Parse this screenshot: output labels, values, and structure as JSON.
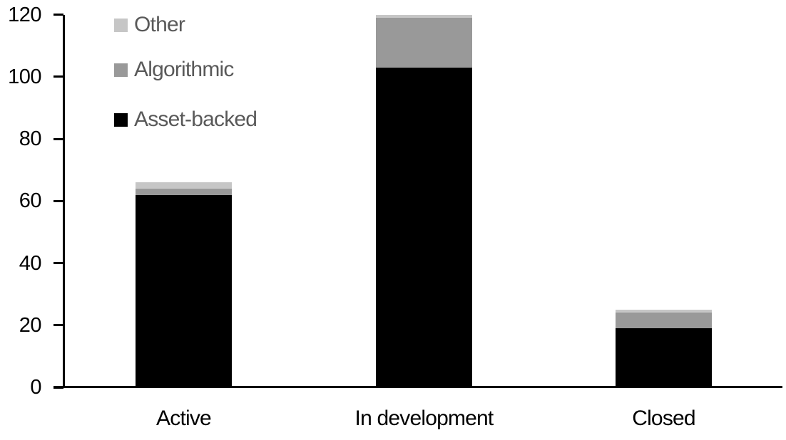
{
  "chart_data": {
    "type": "bar",
    "stacked": true,
    "title": "",
    "xlabel": "",
    "ylabel": "",
    "categories": [
      "Active",
      "In development",
      "Closed"
    ],
    "series": [
      {
        "name": "Asset-backed",
        "color": "#000000",
        "values": [
          62,
          103,
          19
        ]
      },
      {
        "name": "Algorithmic",
        "color": "#999999",
        "values": [
          2,
          16,
          5
        ]
      },
      {
        "name": "Other",
        "color": "#c6c6c6",
        "values": [
          2,
          1,
          1
        ]
      }
    ],
    "stack_totals": [
      66,
      120,
      25
    ],
    "ylim": [
      0,
      120
    ],
    "yticks": [
      0,
      20,
      40,
      60,
      80,
      100,
      120
    ],
    "grid": false,
    "legend_position": "top-left",
    "legend_order": [
      "Other",
      "Algorithmic",
      "Asset-backed"
    ],
    "axis_color": "#000000",
    "tick_label_color": "#000000",
    "category_label_color": "#000000",
    "legend_text_color": "#595959"
  }
}
